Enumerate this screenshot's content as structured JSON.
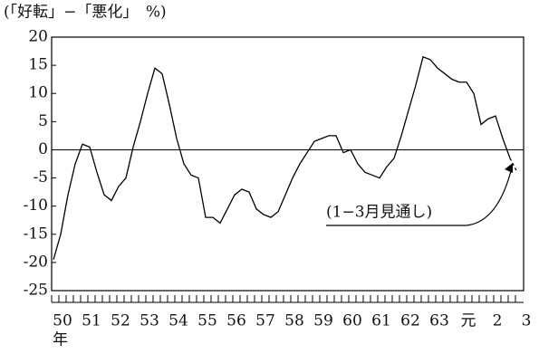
{
  "chart_data": {
    "type": "line",
    "title": "(「好転」−「悪化」　%)",
    "x_unit": "年",
    "annotation": "(1−3月見通し)",
    "categories": [
      "50",
      null,
      null,
      null,
      "51",
      null,
      null,
      null,
      "52",
      null,
      null,
      null,
      "53",
      null,
      null,
      null,
      "54",
      null,
      null,
      null,
      "55",
      null,
      null,
      null,
      "56",
      null,
      null,
      null,
      "57",
      null,
      null,
      null,
      "58",
      null,
      null,
      null,
      "59",
      null,
      null,
      null,
      "60",
      null,
      null,
      null,
      "61",
      null,
      null,
      null,
      "62",
      null,
      null,
      null,
      "63",
      null,
      null,
      null,
      "元",
      null,
      null,
      null,
      "2",
      null,
      null,
      null,
      "3"
    ],
    "series": [
      {
        "color": "#000000",
        "dashed": false,
        "values": [
          -19.5,
          -15,
          -8,
          -2.5,
          1,
          0.5,
          -4,
          -8,
          -9,
          -6.5,
          -5,
          0.5,
          5,
          10,
          14.5,
          13.5,
          8,
          2,
          -2.5,
          -4.5,
          -5,
          -12,
          -12,
          -13,
          -10.5,
          -8,
          -7,
          -7.5,
          -10.5,
          -11.5,
          -12,
          -11,
          -8,
          -5,
          -2.5,
          -0.5,
          1.5,
          2,
          2.5,
          2.5,
          -0.5,
          0,
          -2.5,
          -4,
          -4.5,
          -5,
          -3,
          -1.5,
          2.5,
          7,
          11.5,
          16.5,
          16,
          14.5,
          13.5,
          12.5,
          12,
          12,
          10,
          4.5,
          5.5,
          6,
          2,
          -1.5,
          null
        ]
      },
      {
        "color": "#000000",
        "dashed": true,
        "values": [
          null,
          null,
          null,
          null,
          null,
          null,
          null,
          null,
          null,
          null,
          null,
          null,
          null,
          null,
          null,
          null,
          null,
          null,
          null,
          null,
          null,
          null,
          null,
          null,
          null,
          null,
          null,
          null,
          null,
          null,
          null,
          null,
          null,
          null,
          null,
          null,
          null,
          null,
          null,
          null,
          null,
          null,
          null,
          null,
          null,
          null,
          null,
          null,
          null,
          null,
          null,
          null,
          null,
          null,
          null,
          null,
          null,
          null,
          null,
          null,
          null,
          null,
          null,
          -1.5,
          -4
        ]
      }
    ],
    "ylim": [
      -25,
      20
    ],
    "yticks": [
      20,
      15,
      10,
      5,
      0,
      -5,
      -10,
      -15,
      -20,
      -25
    ]
  }
}
